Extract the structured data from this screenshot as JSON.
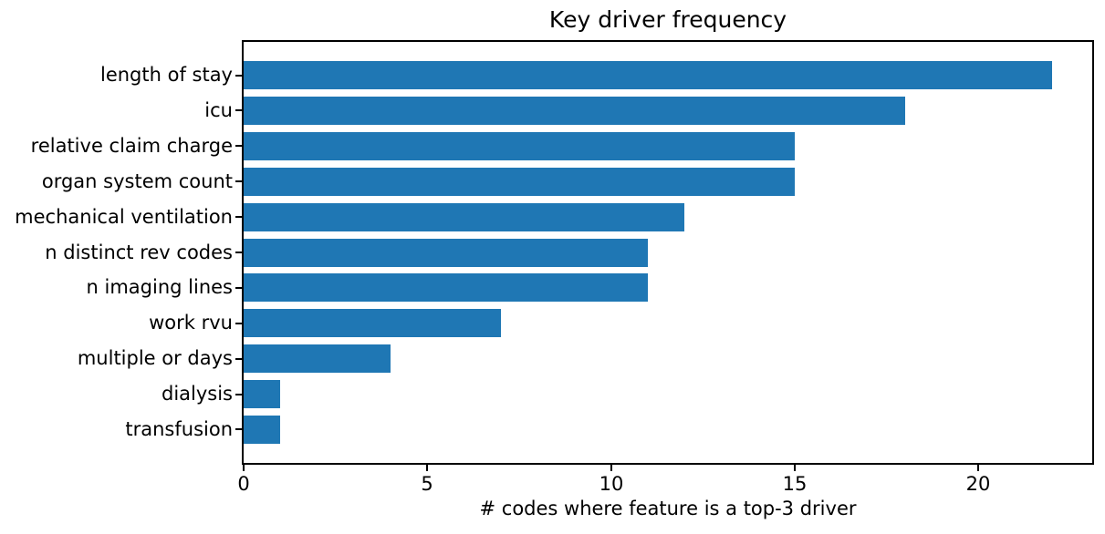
{
  "figure": {
    "background": "#ffffff",
    "text_color": "#000000"
  },
  "chart_data": {
    "type": "bar",
    "orientation": "horizontal",
    "title": "Key driver frequency",
    "xlabel": "# codes where feature is a top-3 driver",
    "ylabel": "",
    "categories": [
      "length of stay",
      "icu",
      "relative claim charge",
      "organ system count",
      "mechanical ventilation",
      "n distinct rev codes",
      "n imaging lines",
      "work rvu",
      "multiple or days",
      "dialysis",
      "transfusion"
    ],
    "values": [
      22,
      18,
      15,
      15,
      12,
      11,
      11,
      7,
      4,
      1,
      1
    ],
    "xlim": [
      0,
      23.1
    ],
    "xticks": [
      0,
      5,
      10,
      15,
      20
    ],
    "bar_color": "#1f77b4",
    "grid": false,
    "legend": null
  }
}
